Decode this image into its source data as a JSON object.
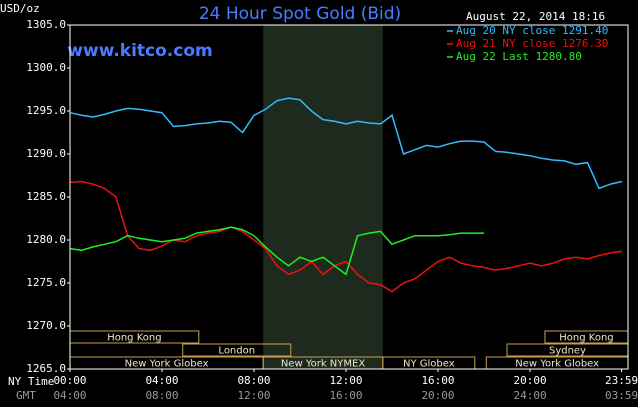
{
  "chart_data": {
    "type": "line",
    "title": "24 Hour Spot Gold (Bid)",
    "subtitle": "www.kitco.com",
    "y_label": "USD/oz",
    "timestamp": "August 22, 2014 18:16",
    "x_label": "NY Time",
    "x2_label": "GMT",
    "x": [
      0,
      0.5,
      1,
      1.5,
      2,
      2.5,
      3,
      3.5,
      4,
      4.5,
      5,
      5.5,
      6,
      6.5,
      7,
      7.5,
      8,
      8.5,
      9,
      9.5,
      10,
      10.5,
      11,
      11.5,
      12,
      12.5,
      13,
      13.5,
      14,
      14.5,
      15,
      15.5,
      16,
      16.5,
      17,
      17.5,
      18,
      18.5,
      19,
      19.5,
      20,
      20.5,
      21,
      21.5,
      22,
      22.5,
      23,
      23.5,
      24
    ],
    "series": [
      {
        "name": "Aug 20 NY close 1291.40",
        "color": "#33bbff",
        "values": [
          1294.8,
          1294.5,
          1294.3,
          1294.6,
          1295.0,
          1295.3,
          1295.2,
          1295.0,
          1294.8,
          1293.2,
          1293.3,
          1293.5,
          1293.6,
          1293.8,
          1293.7,
          1292.5,
          1294.5,
          1295.2,
          1296.2,
          1296.5,
          1296.3,
          1295.0,
          1294.0,
          1293.8,
          1293.5,
          1293.8,
          1293.6,
          1293.5,
          1294.5,
          1290.0,
          1290.5,
          1291.0,
          1290.8,
          1291.2,
          1291.5,
          1291.5,
          1291.4,
          1290.3,
          1290.2,
          1290.0,
          1289.8,
          1289.5,
          1289.3,
          1289.2,
          1288.8,
          1289.0,
          1286.0,
          1286.5,
          1286.8
        ]
      },
      {
        "name": "Aug 21 NY close 1276.30",
        "color": "#ee1111",
        "values": [
          1286.7,
          1286.8,
          1286.5,
          1286.0,
          1285.0,
          1280.5,
          1279.0,
          1278.8,
          1279.3,
          1280.0,
          1279.8,
          1280.5,
          1280.8,
          1281.0,
          1281.5,
          1281.0,
          1280.0,
          1279.0,
          1277.0,
          1276.0,
          1276.5,
          1277.5,
          1276.0,
          1277.0,
          1277.5,
          1276.0,
          1275.0,
          1274.8,
          1274.0,
          1275.0,
          1275.5,
          1276.5,
          1277.5,
          1278.0,
          1277.3,
          1277.0,
          1276.8,
          1276.5,
          1276.7,
          1277.0,
          1277.3,
          1277.0,
          1277.3,
          1277.8,
          1278.0,
          1277.8,
          1278.2,
          1278.5,
          1278.7
        ]
      },
      {
        "name": "Aug 22 Last 1280.80",
        "color": "#22ee22",
        "values": [
          1279.0,
          1278.8,
          1279.2,
          1279.5,
          1279.8,
          1280.5,
          1280.2,
          1280.0,
          1279.8,
          1280.0,
          1280.2,
          1280.8,
          1281.0,
          1281.2,
          1281.5,
          1281.2,
          1280.5,
          1279.2,
          1278.0,
          1277.0,
          1278.0,
          1277.5,
          1278.0,
          1277.0,
          1276.0,
          1280.5,
          1280.8,
          1281.0,
          1279.5,
          1280.0,
          1280.5,
          1280.5,
          1280.5,
          1280.6,
          1280.8,
          1280.8,
          1280.8,
          null,
          null,
          null,
          null,
          null,
          null,
          null,
          null,
          null,
          null,
          null,
          null
        ]
      }
    ],
    "xlim": [
      0,
      24.26
    ],
    "xticks": [
      {
        "value": 0,
        "label": "00:00"
      },
      {
        "value": 4,
        "label": "04:00"
      },
      {
        "value": 8,
        "label": "08:00"
      },
      {
        "value": 12,
        "label": "12:00"
      },
      {
        "value": 16,
        "label": "16:00"
      },
      {
        "value": 20,
        "label": "20:00"
      },
      {
        "value": 23.98,
        "label": "23:59"
      }
    ],
    "x2ticks": [
      {
        "value": 0,
        "label": "04:00"
      },
      {
        "value": 4,
        "label": "08:00"
      },
      {
        "value": 8,
        "label": "12:00"
      },
      {
        "value": 12,
        "label": "16:00"
      },
      {
        "value": 16,
        "label": "20:00"
      },
      {
        "value": 20,
        "label": "24:00"
      },
      {
        "value": 23.98,
        "label": "03:59"
      }
    ],
    "ylim": [
      1265,
      1305
    ],
    "yticks": [
      {
        "value": 1265,
        "label": "1265.0"
      },
      {
        "value": 1270,
        "label": "1270.0"
      },
      {
        "value": 1275,
        "label": "1275.0"
      },
      {
        "value": 1280,
        "label": "1280.0"
      },
      {
        "value": 1285,
        "label": "1285.0"
      },
      {
        "value": 1290,
        "label": "1290.0"
      },
      {
        "value": 1295,
        "label": "1295.0"
      },
      {
        "value": 1300,
        "label": "1300.0"
      },
      {
        "value": 1305,
        "label": "1305.0"
      }
    ],
    "grid": false,
    "shade": [
      8.4,
      13.6
    ],
    "sessions": [
      [
        {
          "label": "Hong Kong",
          "start": 0,
          "end": 5.6
        },
        {
          "label": "Hong Kong",
          "start": 20.65,
          "end": 24.26
        }
      ],
      [
        {
          "label": "London",
          "start": 4.9,
          "end": 9.6
        },
        {
          "label": "Sydney",
          "start": 19.0,
          "end": 24.26
        }
      ],
      [
        {
          "label": "New York Globex",
          "start": 0,
          "end": 8.4
        },
        {
          "label": "New York NYMEX",
          "start": 8.4,
          "end": 13.6
        },
        {
          "label": "NY Globex",
          "start": 13.6,
          "end": 17.6
        },
        {
          "label": "New York Globex",
          "start": 18.1,
          "end": 24.26
        }
      ]
    ]
  }
}
